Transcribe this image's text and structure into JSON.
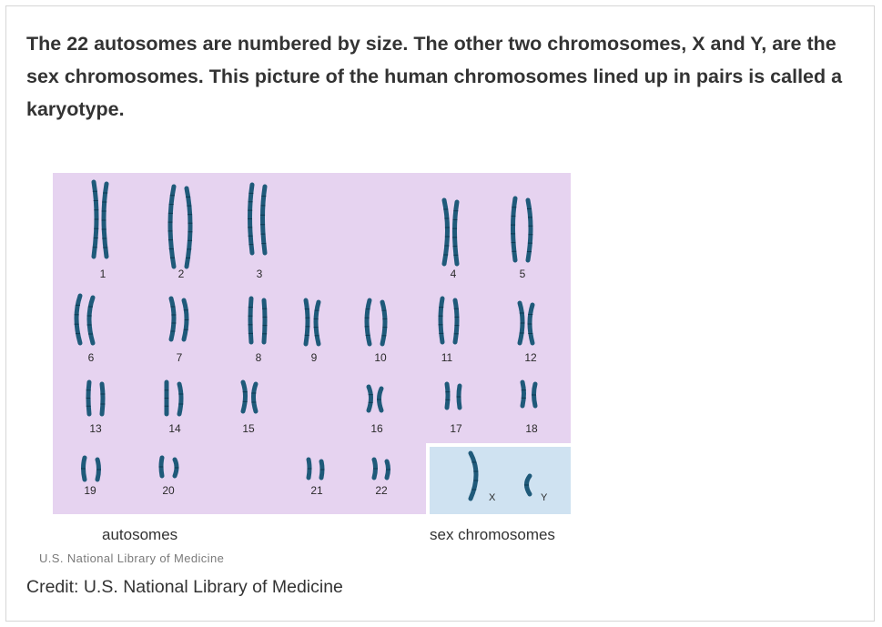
{
  "intro_text": "The 22 autosomes are numbered by size. The other two chromosomes, X and Y, are the sex chromosomes. This picture of the human chromosomes lined up in pairs is called a karyotype.",
  "figure": {
    "colors": {
      "autosome_panel": "#e6d3f0",
      "sex_panel": "#cfe2f1",
      "chromosome": "#1f5a7a",
      "chromosome_band": "#0e3a52"
    },
    "chromosomes": [
      "1",
      "2",
      "3",
      "4",
      "5",
      "6",
      "7",
      "8",
      "9",
      "10",
      "11",
      "12",
      "13",
      "14",
      "15",
      "16",
      "17",
      "18",
      "19",
      "20",
      "21",
      "22"
    ],
    "sex_chromosome_labels": [
      "X",
      "Y"
    ],
    "autosomes_caption": "autosomes",
    "sex_caption": "sex chromosomes",
    "watermark": "U.S. National Library of Medicine"
  },
  "credit": "Credit: U.S. National Library of Medicine"
}
